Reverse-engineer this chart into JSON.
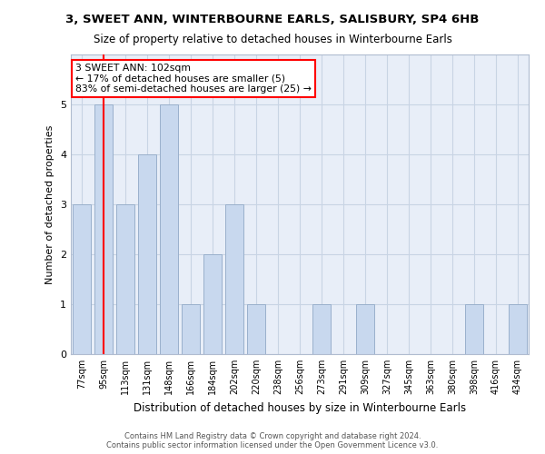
{
  "title": "3, SWEET ANN, WINTERBOURNE EARLS, SALISBURY, SP4 6HB",
  "subtitle": "Size of property relative to detached houses in Winterbourne Earls",
  "xlabel": "Distribution of detached houses by size in Winterbourne Earls",
  "ylabel": "Number of detached properties",
  "categories": [
    "77sqm",
    "95sqm",
    "113sqm",
    "131sqm",
    "148sqm",
    "166sqm",
    "184sqm",
    "202sqm",
    "220sqm",
    "238sqm",
    "256sqm",
    "273sqm",
    "291sqm",
    "309sqm",
    "327sqm",
    "345sqm",
    "363sqm",
    "380sqm",
    "398sqm",
    "416sqm",
    "434sqm"
  ],
  "values": [
    3,
    5,
    3,
    4,
    5,
    1,
    2,
    3,
    1,
    0,
    0,
    1,
    0,
    1,
    0,
    0,
    0,
    0,
    1,
    0,
    1
  ],
  "bar_color": "#c8d8ee",
  "bar_edgecolor": "#9ab0cc",
  "vline_x": 1,
  "vline_color": "red",
  "annotation_text": "3 SWEET ANN: 102sqm\n← 17% of detached houses are smaller (5)\n83% of semi-detached houses are larger (25) →",
  "annotation_box_color": "white",
  "annotation_box_edgecolor": "red",
  "ylim": [
    0,
    6
  ],
  "yticks": [
    0,
    1,
    2,
    3,
    4,
    5,
    6
  ],
  "footnote": "Contains HM Land Registry data © Crown copyright and database right 2024.\nContains public sector information licensed under the Open Government Licence v3.0.",
  "grid_color": "#c8d4e4",
  "bg_color": "#e8eef8"
}
